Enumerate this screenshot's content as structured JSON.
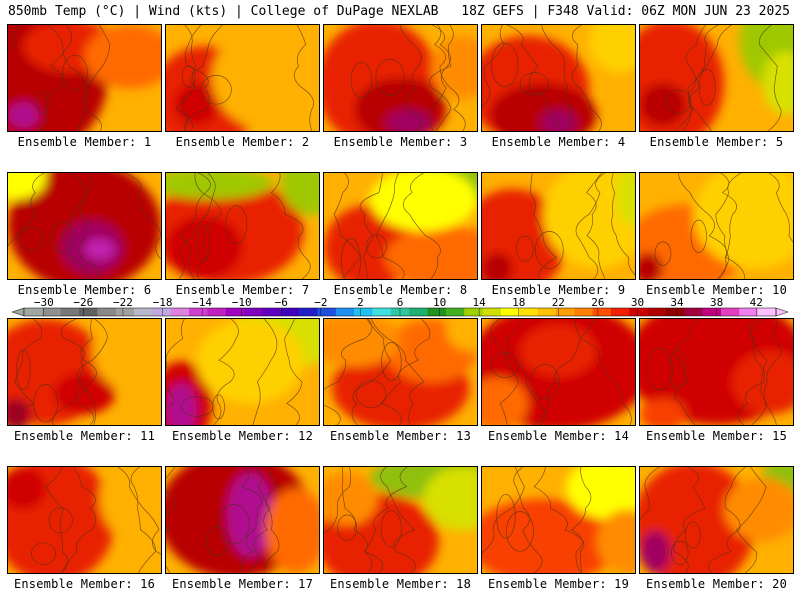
{
  "header": {
    "left": "850mb Temp (°C) | Wind (kts) | College of DuPage NEXLAB",
    "right": "18Z GEFS | F348 Valid: 06Z MON JUN 23 2025"
  },
  "members": [
    {
      "label": "Ensemble Member: 1",
      "blobs": [
        [
          0.2,
          0.5,
          0.45,
          0.7,
          32
        ],
        [
          0.4,
          0.2,
          0.3,
          0.25,
          29
        ],
        [
          0.1,
          0.85,
          0.1,
          0.12,
          39
        ],
        [
          0.8,
          0.3,
          0.3,
          0.3,
          24
        ]
      ]
    },
    {
      "label": "Ensemble Member: 2",
      "blobs": [
        [
          0.25,
          0.7,
          0.35,
          0.5,
          28
        ],
        [
          0.2,
          0.75,
          0.15,
          0.2,
          31
        ],
        [
          0.7,
          0.5,
          0.4,
          0.5,
          21
        ]
      ]
    },
    {
      "label": "Ensemble Member: 3",
      "blobs": [
        [
          0.35,
          0.55,
          0.4,
          0.6,
          29
        ],
        [
          0.5,
          0.8,
          0.3,
          0.3,
          32
        ],
        [
          0.55,
          0.92,
          0.15,
          0.12,
          37
        ],
        [
          0.9,
          0.4,
          0.2,
          0.3,
          23
        ]
      ]
    },
    {
      "label": "Ensemble Member: 4",
      "blobs": [
        [
          0.3,
          0.6,
          0.4,
          0.5,
          28
        ],
        [
          0.4,
          0.85,
          0.35,
          0.3,
          32
        ],
        [
          0.5,
          0.92,
          0.12,
          0.12,
          37
        ],
        [
          0.9,
          0.15,
          0.2,
          0.3,
          18
        ]
      ]
    },
    {
      "label": "Ensemble Member: 5",
      "blobs": [
        [
          0.2,
          0.55,
          0.35,
          0.6,
          29
        ],
        [
          0.15,
          0.75,
          0.15,
          0.2,
          33
        ],
        [
          0.9,
          0.15,
          0.25,
          0.45,
          11
        ],
        [
          0.95,
          0.55,
          0.15,
          0.3,
          14
        ]
      ]
    },
    {
      "label": "Ensemble Member: 6",
      "blobs": [
        [
          0.5,
          0.5,
          0.5,
          0.6,
          32
        ],
        [
          0.55,
          0.7,
          0.2,
          0.25,
          36
        ],
        [
          0.6,
          0.72,
          0.1,
          0.1,
          40
        ],
        [
          0.05,
          0.05,
          0.2,
          0.2,
          17
        ]
      ]
    },
    {
      "label": "Ensemble Member: 7",
      "blobs": [
        [
          0.4,
          0.55,
          0.5,
          0.5,
          29
        ],
        [
          0.25,
          0.7,
          0.25,
          0.3,
          30
        ],
        [
          0.3,
          0.1,
          0.4,
          0.15,
          12
        ],
        [
          0.95,
          0.1,
          0.2,
          0.3,
          13
        ]
      ]
    },
    {
      "label": "Ensemble Member: 8",
      "blobs": [
        [
          0.3,
          0.7,
          0.3,
          0.4,
          29
        ],
        [
          0.8,
          0.8,
          0.4,
          0.3,
          25
        ],
        [
          0.85,
          0.1,
          0.35,
          0.2,
          10
        ],
        [
          0.65,
          0.25,
          0.35,
          0.3,
          16
        ]
      ]
    },
    {
      "label": "Ensemble Member: 9",
      "blobs": [
        [
          0.2,
          0.65,
          0.35,
          0.5,
          28
        ],
        [
          0.1,
          0.9,
          0.1,
          0.15,
          33
        ],
        [
          0.75,
          0.4,
          0.35,
          0.5,
          19
        ],
        [
          0.98,
          0.2,
          0.1,
          0.3,
          14
        ]
      ]
    },
    {
      "label": "Ensemble Member: 10",
      "blobs": [
        [
          0.3,
          0.7,
          0.4,
          0.4,
          24
        ],
        [
          0.05,
          0.9,
          0.1,
          0.15,
          32
        ],
        [
          0.75,
          0.4,
          0.4,
          0.5,
          19
        ]
      ]
    },
    {
      "label": "Ensemble Member: 11",
      "blobs": [
        [
          0.25,
          0.5,
          0.4,
          0.5,
          28
        ],
        [
          0.05,
          0.9,
          0.1,
          0.15,
          34
        ],
        [
          0.5,
          0.7,
          0.2,
          0.2,
          30
        ],
        [
          0.85,
          0.3,
          0.3,
          0.4,
          21
        ]
      ]
    },
    {
      "label": "Ensemble Member: 12",
      "blobs": [
        [
          0.1,
          0.8,
          0.2,
          0.4,
          31
        ],
        [
          0.1,
          0.85,
          0.1,
          0.25,
          38
        ],
        [
          0.8,
          0.15,
          0.4,
          0.3,
          15
        ],
        [
          0.55,
          0.4,
          0.35,
          0.4,
          18
        ]
      ]
    },
    {
      "label": "Ensemble Member: 13",
      "blobs": [
        [
          0.5,
          0.65,
          0.45,
          0.4,
          28
        ],
        [
          0.7,
          0.3,
          0.3,
          0.3,
          25
        ],
        [
          0.2,
          0.2,
          0.3,
          0.25,
          22
        ],
        [
          0.95,
          0.1,
          0.15,
          0.2,
          20
        ]
      ]
    },
    {
      "label": "Ensemble Member: 14",
      "blobs": [
        [
          0.5,
          0.45,
          0.6,
          0.6,
          31
        ],
        [
          0.5,
          0.3,
          0.25,
          0.25,
          29
        ],
        [
          0.1,
          0.8,
          0.2,
          0.25,
          25
        ]
      ]
    },
    {
      "label": "Ensemble Member: 15",
      "blobs": [
        [
          0.5,
          0.4,
          0.6,
          0.6,
          30
        ],
        [
          0.85,
          0.6,
          0.25,
          0.3,
          28
        ],
        [
          0.15,
          0.9,
          0.15,
          0.15,
          26
        ]
      ]
    },
    {
      "label": "Ensemble Member: 16",
      "blobs": [
        [
          0.3,
          0.5,
          0.4,
          0.6,
          29
        ],
        [
          0.1,
          0.2,
          0.15,
          0.2,
          31
        ],
        [
          0.85,
          0.3,
          0.25,
          0.4,
          21
        ]
      ]
    },
    {
      "label": "Ensemble Member: 17",
      "blobs": [
        [
          0.45,
          0.45,
          0.5,
          0.6,
          32
        ],
        [
          0.55,
          0.45,
          0.15,
          0.4,
          39
        ],
        [
          0.85,
          0.6,
          0.2,
          0.4,
          24
        ]
      ]
    },
    {
      "label": "Ensemble Member: 18",
      "blobs": [
        [
          0.35,
          0.7,
          0.4,
          0.45,
          28
        ],
        [
          0.7,
          0.1,
          0.4,
          0.2,
          10
        ],
        [
          0.9,
          0.3,
          0.25,
          0.3,
          15
        ],
        [
          0.15,
          0.3,
          0.2,
          0.25,
          23
        ]
      ]
    },
    {
      "label": "Ensemble Member: 19",
      "blobs": [
        [
          0.4,
          0.7,
          0.5,
          0.4,
          27
        ],
        [
          0.85,
          0.2,
          0.3,
          0.3,
          17
        ],
        [
          0.95,
          0.7,
          0.2,
          0.3,
          22
        ]
      ]
    },
    {
      "label": "Ensemble Member: 20",
      "blobs": [
        [
          0.35,
          0.55,
          0.4,
          0.6,
          29
        ],
        [
          0.1,
          0.8,
          0.1,
          0.2,
          36
        ],
        [
          0.95,
          0.1,
          0.15,
          0.2,
          10
        ],
        [
          0.8,
          0.4,
          0.25,
          0.3,
          22
        ]
      ]
    }
  ],
  "colorbar": {
    "ticks": [
      "−30",
      "−26",
      "−22",
      "−18",
      "−14",
      "−10",
      "−6",
      "−2",
      "2",
      "6",
      "10",
      "14",
      "18",
      "22",
      "26",
      "30",
      "34",
      "38",
      "42"
    ],
    "colors": [
      "#a0a8a0",
      "#909090",
      "#787878",
      "#606060",
      "#888888",
      "#a0a0a0",
      "#b8b8c8",
      "#c0a8e0",
      "#e080e0",
      "#d040d0",
      "#c020c0",
      "#a000c0",
      "#8000c0",
      "#6000c0",
      "#4000c0",
      "#2020c8",
      "#2050e0",
      "#2090f0",
      "#20c0f0",
      "#40e0e0",
      "#30c8a0",
      "#20b070",
      "#209020",
      "#40b020",
      "#a0d000",
      "#d0e000",
      "#ffff00",
      "#ffe000",
      "#ffc000",
      "#ffa000",
      "#ff8000",
      "#ff5000",
      "#f02000",
      "#d00000",
      "#b00000",
      "#900000",
      "#a00040",
      "#c00080",
      "#e040c0",
      "#f080f0",
      "#ffc0ff"
    ],
    "field_stops": [
      [
        8,
        "#90c010"
      ],
      [
        11,
        "#a0c800"
      ],
      [
        14,
        "#d8e000"
      ],
      [
        16,
        "#ffff00"
      ],
      [
        18,
        "#ffd000"
      ],
      [
        20,
        "#ffb000"
      ],
      [
        22,
        "#ff8c00"
      ],
      [
        24,
        "#ff6a00"
      ],
      [
        26,
        "#f84000"
      ],
      [
        28,
        "#e82000"
      ],
      [
        30,
        "#d00000"
      ],
      [
        32,
        "#b80000"
      ],
      [
        34,
        "#a00020"
      ],
      [
        36,
        "#a00060"
      ],
      [
        38,
        "#b01090"
      ],
      [
        40,
        "#c020b0"
      ]
    ]
  },
  "colors": {
    "contour": "#503018",
    "border": "#000000",
    "background": "#ffffff"
  }
}
